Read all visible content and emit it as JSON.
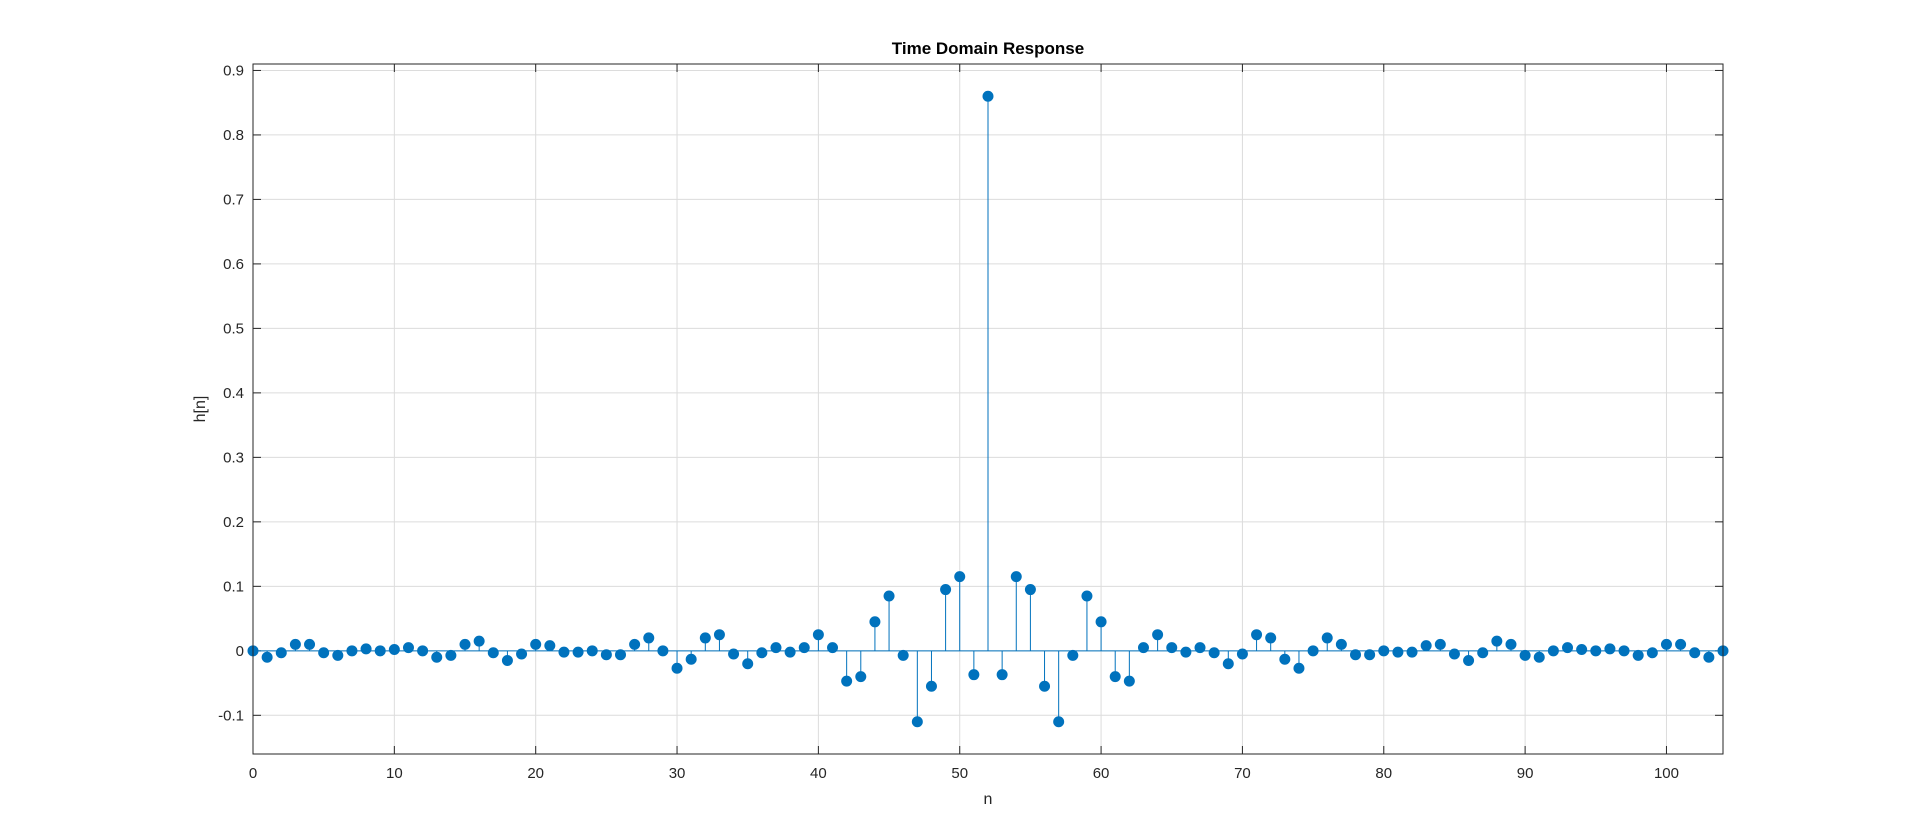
{
  "chart_data": {
    "type": "stem",
    "title": "Time Domain Response",
    "xlabel": "n",
    "ylabel": "h[n]",
    "xlim": [
      0,
      104
    ],
    "ylim": [
      -0.16,
      0.91
    ],
    "xticks": [
      0,
      10,
      20,
      30,
      40,
      50,
      60,
      70,
      80,
      90,
      100
    ],
    "yticks": [
      -0.1,
      0,
      0.1,
      0.2,
      0.3,
      0.4,
      0.5,
      0.6,
      0.7,
      0.8,
      0.9
    ],
    "xtick_labels": [
      "0",
      "10",
      "20",
      "30",
      "40",
      "50",
      "60",
      "70",
      "80",
      "90",
      "100"
    ],
    "ytick_labels": [
      "-0.1",
      "0",
      "0.1",
      "0.2",
      "0.3",
      "0.4",
      "0.5",
      "0.6",
      "0.7",
      "0.8",
      "0.9"
    ],
    "grid": true,
    "color": "#0072BD",
    "x": [
      0,
      1,
      2,
      3,
      4,
      5,
      6,
      7,
      8,
      9,
      10,
      11,
      12,
      13,
      14,
      15,
      16,
      17,
      18,
      19,
      20,
      21,
      22,
      23,
      24,
      25,
      26,
      27,
      28,
      29,
      30,
      31,
      32,
      33,
      34,
      35,
      36,
      37,
      38,
      39,
      40,
      41,
      42,
      43,
      44,
      45,
      46,
      47,
      48,
      49,
      50,
      51,
      52,
      53,
      54,
      55,
      56,
      57,
      58,
      59,
      60,
      61,
      62,
      63,
      64,
      65,
      66,
      67,
      68,
      69,
      70,
      71,
      72,
      73,
      74,
      75,
      76,
      77,
      78,
      79,
      80,
      81,
      82,
      83,
      84,
      85,
      86,
      87,
      88,
      89,
      90,
      91,
      92,
      93,
      94,
      95,
      96,
      97,
      98,
      99,
      100,
      101,
      102,
      103,
      104
    ],
    "y": [
      0.0,
      -0.01,
      -0.003,
      0.01,
      0.01,
      -0.003,
      -0.007,
      0.0,
      0.003,
      0.0,
      0.002,
      0.005,
      0.0,
      -0.01,
      -0.007,
      0.01,
      0.015,
      -0.003,
      -0.015,
      -0.005,
      0.01,
      0.008,
      -0.002,
      -0.002,
      0.0,
      -0.006,
      -0.006,
      0.01,
      0.02,
      0.0,
      -0.027,
      -0.013,
      0.02,
      0.025,
      -0.005,
      -0.02,
      -0.003,
      0.005,
      -0.002,
      0.005,
      0.025,
      0.005,
      -0.047,
      -0.04,
      0.045,
      0.085,
      -0.007,
      -0.11,
      -0.055,
      0.095,
      0.115,
      -0.037,
      0.86,
      -0.037,
      0.115,
      0.095,
      -0.055,
      -0.11,
      -0.007,
      0.085,
      0.045,
      -0.04,
      -0.047,
      0.005,
      0.025,
      0.005,
      -0.002,
      0.005,
      -0.003,
      -0.02,
      -0.005,
      0.025,
      0.02,
      -0.013,
      -0.027,
      0.0,
      0.02,
      0.01,
      -0.006,
      -0.006,
      0.0,
      -0.002,
      -0.002,
      0.008,
      0.01,
      -0.005,
      -0.015,
      -0.003,
      0.015,
      0.01,
      -0.007,
      -0.01,
      0.0,
      0.005,
      0.002,
      0.0,
      0.003,
      0.0,
      -0.007,
      -0.003,
      0.01,
      0.01,
      -0.003,
      -0.01,
      0.0
    ]
  }
}
